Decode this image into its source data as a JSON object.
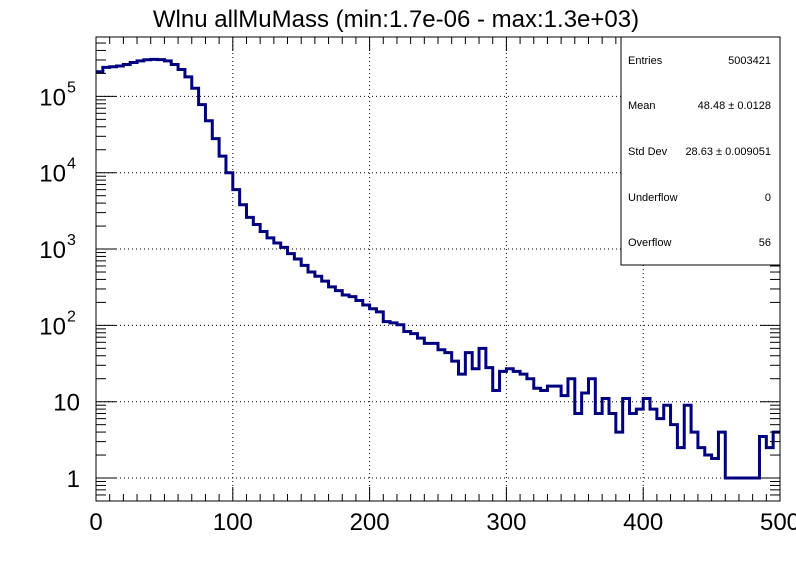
{
  "chart_data": {
    "type": "histogram",
    "title": "Wlnu allMuMass (min:1.7e-06 - max:1.3e+03)",
    "xlabel": "",
    "ylabel": "",
    "xlim": [
      0,
      500
    ],
    "ylim": [
      0.5,
      600000
    ],
    "y_scale": "log",
    "grid": true,
    "line_color": "#000080",
    "bin_width": 5,
    "x_ticks": [
      {
        "value": 0,
        "label": "0"
      },
      {
        "value": 100,
        "label": "100"
      },
      {
        "value": 200,
        "label": "200"
      },
      {
        "value": 300,
        "label": "300"
      },
      {
        "value": 400,
        "label": "400"
      },
      {
        "value": 500,
        "label": "500"
      }
    ],
    "y_ticks": [
      {
        "value": 1,
        "label": "1",
        "exp": ""
      },
      {
        "value": 10,
        "label": "10",
        "exp": ""
      },
      {
        "value": 100,
        "label": "10",
        "exp": "2"
      },
      {
        "value": 1000,
        "label": "10",
        "exp": "3"
      },
      {
        "value": 10000,
        "label": "10",
        "exp": "4"
      },
      {
        "value": 100000,
        "label": "10",
        "exp": "5"
      }
    ],
    "values": [
      210000,
      240000,
      245000,
      250000,
      262000,
      278000,
      292000,
      302000,
      305000,
      303000,
      292000,
      262000,
      225000,
      180000,
      128000,
      78000,
      48000,
      28000,
      16500,
      10000,
      6000,
      3800,
      2600,
      2100,
      1700,
      1400,
      1200,
      1050,
      870,
      740,
      610,
      500,
      440,
      380,
      320,
      285,
      250,
      238,
      212,
      185,
      165,
      150,
      112,
      108,
      102,
      83,
      78,
      68,
      58,
      58,
      48,
      44,
      34,
      23,
      44,
      27,
      50,
      28,
      14,
      25,
      27,
      25,
      23,
      20,
      15,
      14,
      16,
      16,
      12,
      20,
      7,
      13,
      20,
      7,
      11,
      7,
      4,
      11,
      7,
      8,
      11,
      8,
      6,
      9,
      5,
      2.5,
      9,
      4,
      2.5,
      2,
      1.8,
      4,
      1,
      1,
      1,
      1,
      1,
      3.5,
      2.5,
      4
    ],
    "stats": [
      {
        "label": "Entries",
        "value": "5003421"
      },
      {
        "label": "Mean",
        "value": "48.48 ± 0.0128"
      },
      {
        "label": "Std Dev",
        "value": "28.63 ± 0.009051"
      },
      {
        "label": "Underflow",
        "value": "0"
      },
      {
        "label": "Overflow",
        "value": "56"
      }
    ]
  }
}
